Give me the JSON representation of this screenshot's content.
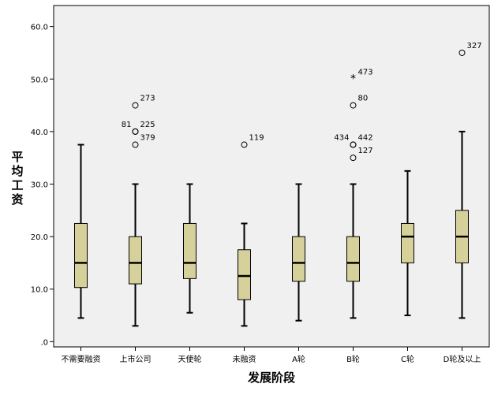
{
  "chart_data": {
    "type": "boxplot",
    "xlabel": "发展阶段",
    "ylabel": "平均工资",
    "ylim": [
      -1,
      64
    ],
    "yticks": [
      0,
      10,
      20,
      30,
      40,
      50,
      60
    ],
    "ytick_labels": [
      ".0",
      "10.0",
      "20.0",
      "30.0",
      "40.0",
      "50.0",
      "60.0"
    ],
    "grid": false,
    "box_color": "#d6d09a",
    "plot_background": "#f0f0f0",
    "categories": [
      "不需要融资",
      "上市公司",
      "天使轮",
      "未融资",
      "A轮",
      "B轮",
      "C轮",
      "D轮及以上"
    ],
    "boxes": [
      {
        "whisker_low": 4.5,
        "q1": 10.3,
        "median": 15,
        "q3": 22.5,
        "whisker_high": 37.5,
        "outliers": []
      },
      {
        "whisker_low": 3,
        "q1": 11,
        "median": 15,
        "q3": 20,
        "whisker_high": 30,
        "outliers": [
          {
            "value": 45,
            "marker": "circle",
            "label": "273"
          },
          {
            "value": 40,
            "marker": "circle",
            "label": "81"
          },
          {
            "value": 40,
            "marker": "circle",
            "label": "225"
          },
          {
            "value": 37.5,
            "marker": "circle",
            "label": "379"
          }
        ]
      },
      {
        "whisker_low": 5.5,
        "q1": 12,
        "median": 15,
        "q3": 22.5,
        "whisker_high": 30,
        "outliers": []
      },
      {
        "whisker_low": 3,
        "q1": 8,
        "median": 12.5,
        "q3": 17.5,
        "whisker_high": 22.5,
        "outliers": [
          {
            "value": 37.5,
            "marker": "circle",
            "label": "119"
          }
        ]
      },
      {
        "whisker_low": 4,
        "q1": 11.5,
        "median": 15,
        "q3": 20,
        "whisker_high": 30,
        "outliers": []
      },
      {
        "whisker_low": 4.5,
        "q1": 11.5,
        "median": 15,
        "q3": 20,
        "whisker_high": 30,
        "outliers": [
          {
            "value": 50,
            "marker": "star",
            "label": "473"
          },
          {
            "value": 45,
            "marker": "circle",
            "label": "80"
          },
          {
            "value": 37.5,
            "marker": "circle",
            "label": "434"
          },
          {
            "value": 37.5,
            "marker": "circle",
            "label": "442"
          },
          {
            "value": 35,
            "marker": "circle",
            "label": "127"
          }
        ]
      },
      {
        "whisker_low": 5,
        "q1": 15,
        "median": 20,
        "q3": 22.5,
        "whisker_high": 32.5,
        "outliers": []
      },
      {
        "whisker_low": 4.5,
        "q1": 15,
        "median": 20,
        "q3": 25,
        "whisker_high": 40,
        "outliers": [
          {
            "value": 55,
            "marker": "circle",
            "label": "327"
          }
        ]
      }
    ]
  }
}
